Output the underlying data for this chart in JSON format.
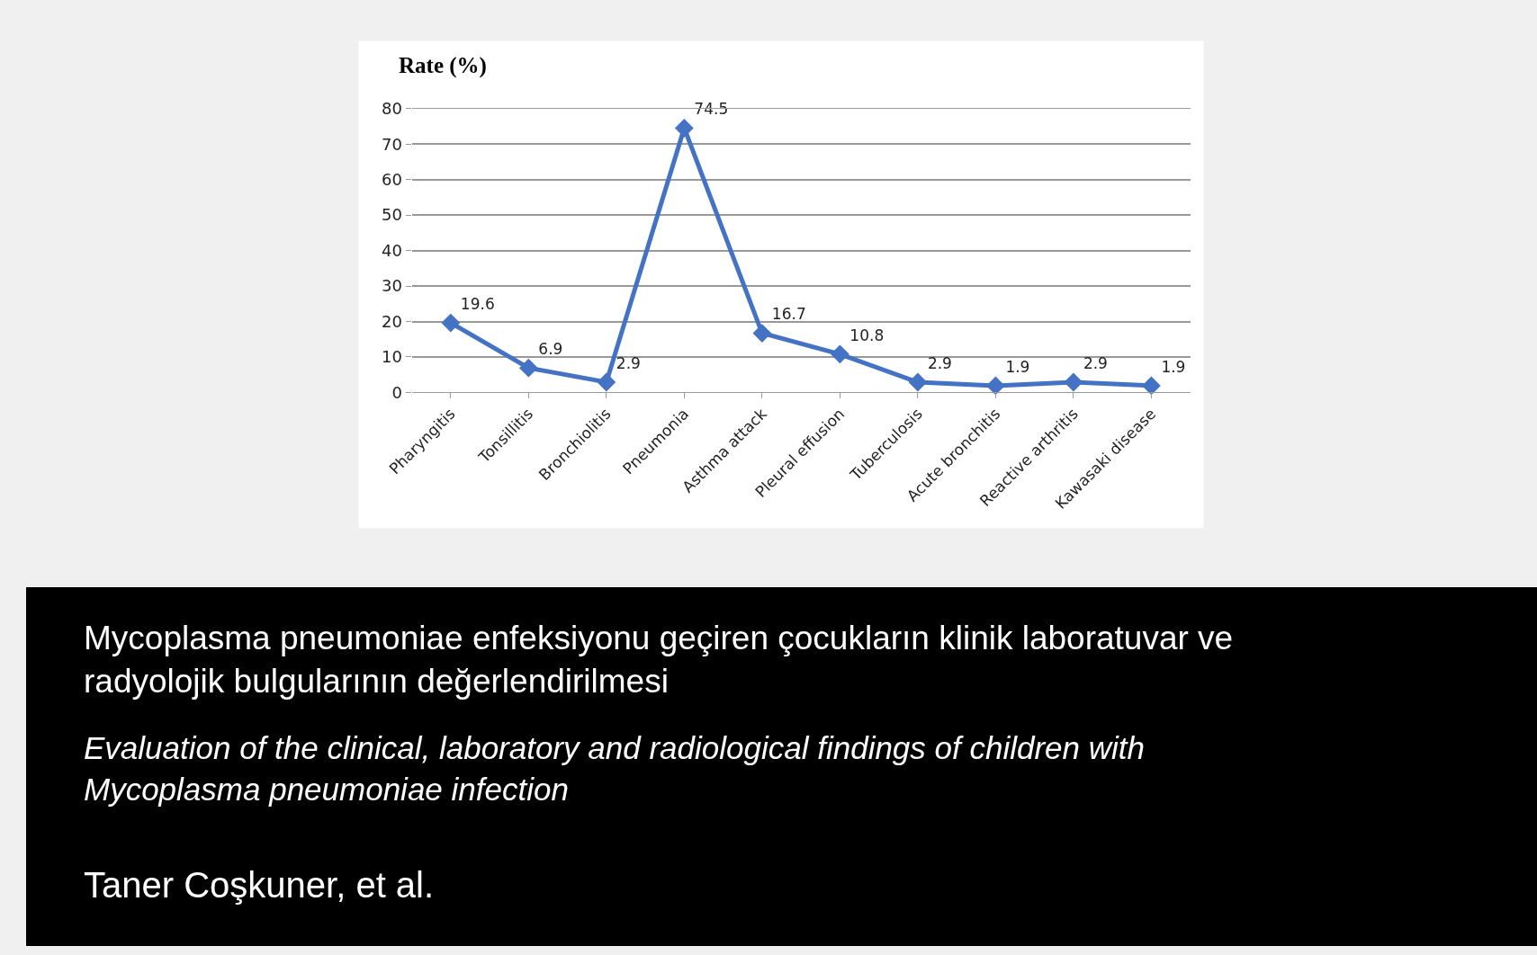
{
  "chart_data": {
    "type": "line",
    "title": "Mycoplasma pneumoniae enfeksiyonu geçiren çocukların klinik laboratuvar ve radyolojik bulgularının değerlendirilmesi",
    "subtitle": "Evaluation of the clinical, laboratory and radiological findings of children with Mycoplasma pneumoniae infection",
    "ylabel": "Rate (%)",
    "annotations": [
      "Taner Coşkuner, et al."
    ],
    "categories": [
      "Pharyngitis",
      "Tonsillitis",
      "Bronchiolitis",
      "Pneumonia",
      "Asthma attack",
      "Pleural effusion",
      "Tuberculosis",
      "Acute bronchitis",
      "Reactive arthritis",
      "Kawasaki disease"
    ],
    "series": [
      {
        "color": "#4472c4",
        "values": [
          19.6,
          6.9,
          2.9,
          74.5,
          16.7,
          10.8,
          2.9,
          1.9,
          2.9,
          1.9
        ]
      }
    ],
    "ylim": [
      0,
      80
    ],
    "yticks": [
      0,
      10,
      20,
      30,
      40,
      50,
      60,
      70,
      80
    ],
    "grid": "y",
    "marker": "diamond",
    "line_style": "solid",
    "data_labels": true
  }
}
